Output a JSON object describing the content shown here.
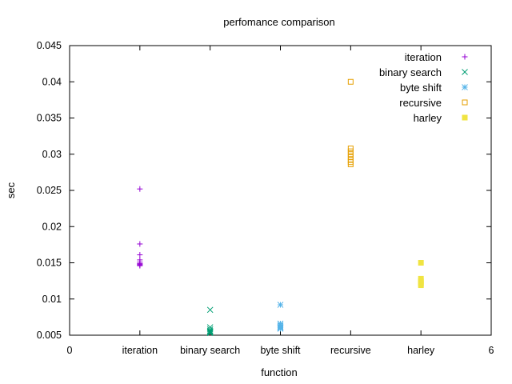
{
  "chart_data": {
    "type": "scatter",
    "title": "perfomance comparison",
    "xlabel": "function",
    "ylabel": "sec",
    "xlim": [
      0,
      6
    ],
    "ylim": [
      0.005,
      0.045
    ],
    "x_ticks": [
      {
        "value": 0,
        "label": "0"
      },
      {
        "value": 1,
        "label": "iteration"
      },
      {
        "value": 2,
        "label": "binary search"
      },
      {
        "value": 3,
        "label": "byte shift"
      },
      {
        "value": 4,
        "label": "recursive"
      },
      {
        "value": 5,
        "label": "harley"
      },
      {
        "value": 6,
        "label": "6"
      }
    ],
    "y_ticks": [
      {
        "value": 0.005,
        "label": "0.005"
      },
      {
        "value": 0.01,
        "label": "0.01"
      },
      {
        "value": 0.015,
        "label": "0.015"
      },
      {
        "value": 0.02,
        "label": "0.02"
      },
      {
        "value": 0.025,
        "label": "0.025"
      },
      {
        "value": 0.03,
        "label": "0.03"
      },
      {
        "value": 0.035,
        "label": "0.035"
      },
      {
        "value": 0.04,
        "label": "0.04"
      },
      {
        "value": 0.045,
        "label": "0.045"
      }
    ],
    "grid": false,
    "legend_position": "top-right",
    "series": [
      {
        "name": "iteration",
        "marker": "plus",
        "color": "#9400d3",
        "x": [
          1,
          1,
          1,
          1,
          1,
          1,
          1,
          1,
          1
        ],
        "y": [
          0.0252,
          0.0176,
          0.0161,
          0.0154,
          0.0151,
          0.0149,
          0.0148,
          0.0147,
          0.0146
        ]
      },
      {
        "name": "binary search",
        "marker": "cross",
        "color": "#009e73",
        "x": [
          2,
          2,
          2,
          2,
          2,
          2,
          2
        ],
        "y": [
          0.0085,
          0.0061,
          0.0058,
          0.0056,
          0.0055,
          0.0054,
          0.0053
        ]
      },
      {
        "name": "byte shift",
        "marker": "star",
        "color": "#56b4e9",
        "x": [
          3,
          3,
          3,
          3,
          3,
          3,
          3
        ],
        "y": [
          0.0092,
          0.0066,
          0.0064,
          0.0062,
          0.0061,
          0.006,
          0.0059
        ]
      },
      {
        "name": "recursive",
        "marker": "open-square",
        "color": "#e69f00",
        "x": [
          4,
          4,
          4,
          4,
          4,
          4,
          4,
          4
        ],
        "y": [
          0.04,
          0.0308,
          0.0304,
          0.03,
          0.0296,
          0.0292,
          0.0289,
          0.0286
        ]
      },
      {
        "name": "harley",
        "marker": "filled-square",
        "color": "#f0e442",
        "x": [
          5,
          5,
          5,
          5,
          5,
          5
        ],
        "y": [
          0.015,
          0.0128,
          0.0125,
          0.0123,
          0.0121,
          0.0119
        ]
      }
    ]
  }
}
